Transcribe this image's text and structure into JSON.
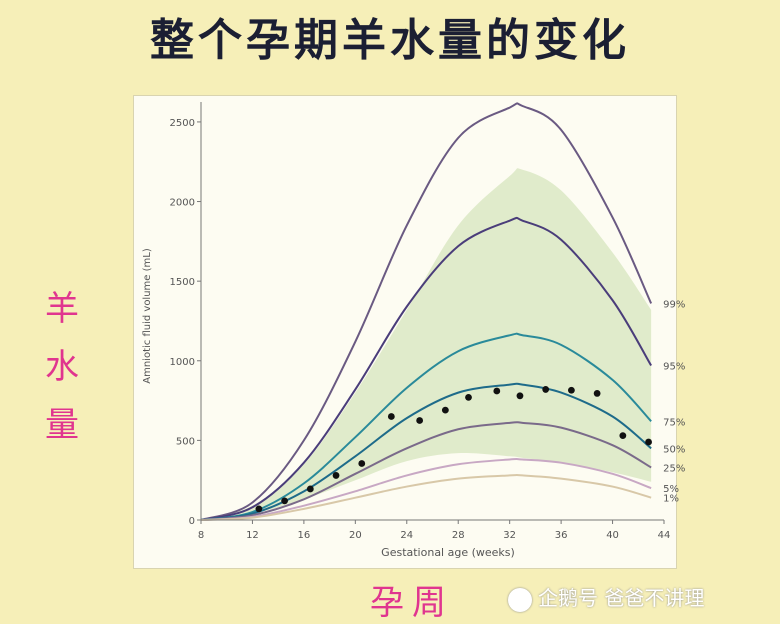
{
  "title": "整个孕期羊水量的变化",
  "side_label": [
    "羊",
    "水",
    "量"
  ],
  "bottom_label": "孕周",
  "watermark": "企鹅号 爸爸不讲理",
  "colors": {
    "background": "#f6efb8",
    "title": "#1b1f33",
    "annotation": "#e0358f",
    "band": "#d6e6bd"
  },
  "chart_data": {
    "type": "line",
    "xlabel": "Gestational age (weeks)",
    "ylabel": "Amniotic fluid volume (mL)",
    "xlim": [
      8,
      44
    ],
    "ylim": [
      0,
      2600
    ],
    "x_ticks": [
      8,
      12,
      16,
      20,
      24,
      28,
      32,
      36,
      40,
      44
    ],
    "y_ticks": [
      0,
      500,
      1000,
      1500,
      2000,
      2500
    ],
    "grid": false,
    "band": {
      "x": [
        8,
        12,
        16,
        20,
        24,
        28,
        32,
        33,
        36,
        40,
        43
      ],
      "upper": [
        0,
        90,
        350,
        800,
        1320,
        1850,
        2160,
        2200,
        2070,
        1680,
        1320
      ],
      "lower": [
        0,
        40,
        130,
        250,
        370,
        420,
        400,
        390,
        360,
        300,
        240
      ]
    },
    "series": [
      {
        "name": "99%",
        "color": "#6a5a82",
        "x": [
          8,
          12,
          16,
          20,
          24,
          28,
          32,
          33,
          36,
          40,
          43
        ],
        "values": [
          0,
          110,
          500,
          1120,
          1850,
          2400,
          2590,
          2600,
          2450,
          1900,
          1360
        ]
      },
      {
        "name": "95%",
        "color": "#4a3d7a",
        "x": [
          8,
          12,
          16,
          20,
          24,
          28,
          32,
          33,
          36,
          40,
          43
        ],
        "values": [
          0,
          80,
          360,
          820,
          1340,
          1720,
          1880,
          1880,
          1760,
          1380,
          970
        ]
      },
      {
        "name": "75%",
        "color": "#2a8a9a",
        "x": [
          8,
          12,
          16,
          20,
          24,
          28,
          32,
          33,
          36,
          40,
          43
        ],
        "values": [
          0,
          50,
          230,
          520,
          830,
          1060,
          1160,
          1160,
          1100,
          880,
          620
        ]
      },
      {
        "name": "50%",
        "color": "#1e6b8a",
        "x": [
          8,
          12,
          16,
          20,
          24,
          28,
          32,
          33,
          36,
          40,
          43
        ],
        "values": [
          0,
          40,
          180,
          400,
          640,
          800,
          850,
          850,
          800,
          650,
          450
        ]
      },
      {
        "name": "25%",
        "color": "#7a6a8a",
        "x": [
          8,
          12,
          16,
          20,
          24,
          28,
          32,
          33,
          36,
          40,
          43
        ],
        "values": [
          0,
          30,
          130,
          290,
          450,
          570,
          610,
          610,
          580,
          470,
          330
        ]
      },
      {
        "name": "5%",
        "color": "#c8a8c4",
        "x": [
          8,
          12,
          16,
          20,
          24,
          28,
          32,
          33,
          36,
          40,
          43
        ],
        "values": [
          0,
          20,
          90,
          180,
          280,
          350,
          380,
          380,
          360,
          290,
          200
        ]
      },
      {
        "name": "1%",
        "color": "#d8c8a8",
        "x": [
          8,
          12,
          16,
          20,
          24,
          28,
          32,
          33,
          36,
          40,
          43
        ],
        "values": [
          0,
          15,
          70,
          140,
          210,
          260,
          280,
          280,
          260,
          210,
          140
        ]
      }
    ],
    "points": {
      "x": [
        12.5,
        14.5,
        16.5,
        18.5,
        20.5,
        22.8,
        25,
        27,
        28.8,
        31,
        32.8,
        34.8,
        36.8,
        38.8,
        40.8,
        42.8
      ],
      "y": [
        70,
        120,
        195,
        280,
        355,
        650,
        625,
        690,
        770,
        810,
        780,
        820,
        815,
        795,
        530,
        490
      ]
    }
  }
}
